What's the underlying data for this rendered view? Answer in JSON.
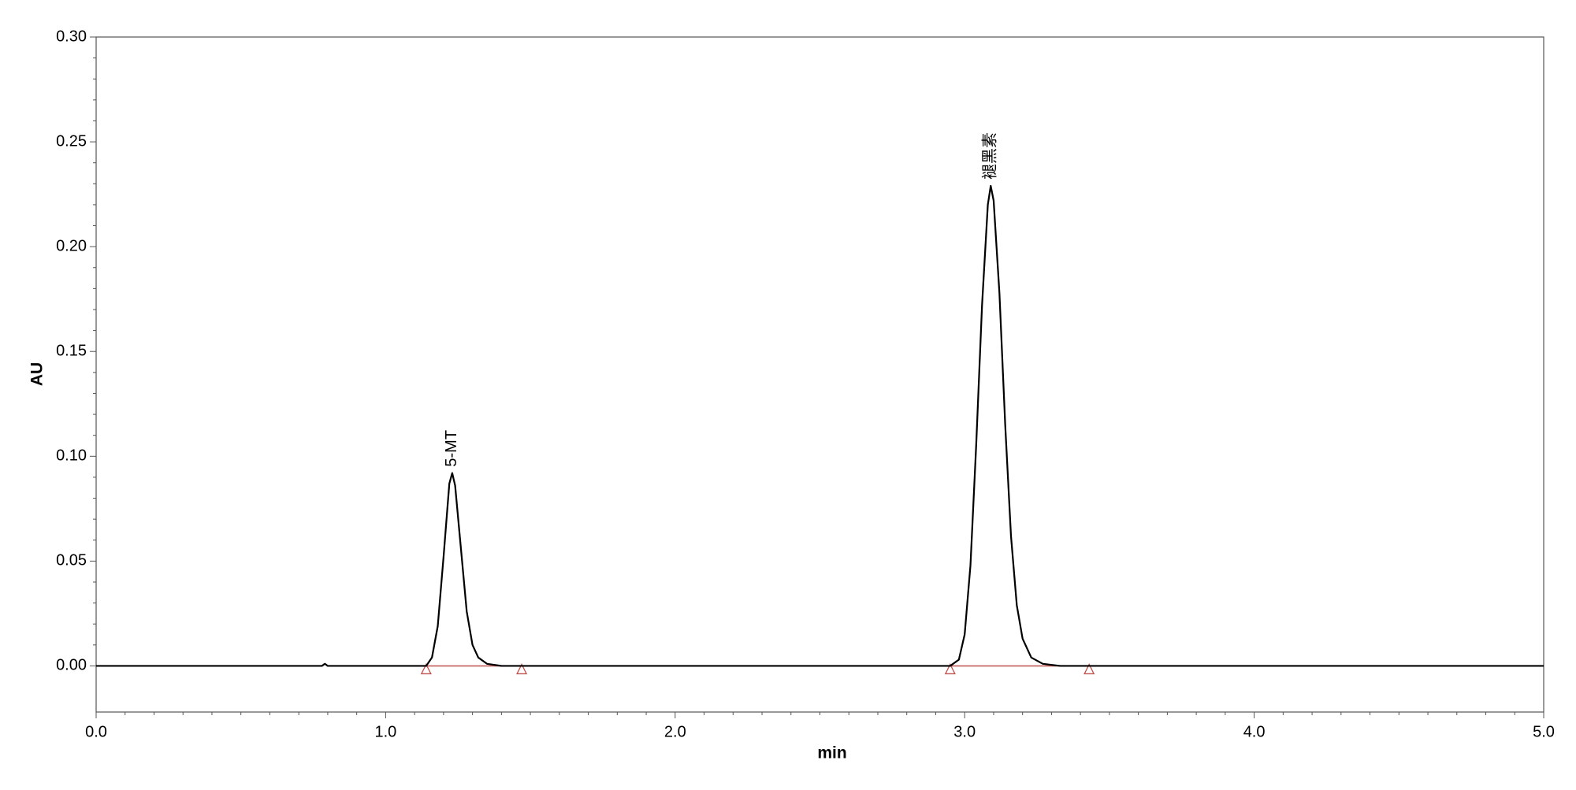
{
  "chart_data": {
    "type": "line",
    "xlabel": "min",
    "ylabel": "AU",
    "x": [
      0,
      0.78,
      0.79,
      0.8,
      1.14,
      1.16,
      1.18,
      1.2,
      1.22,
      1.23,
      1.24,
      1.26,
      1.28,
      1.3,
      1.32,
      1.35,
      1.4,
      2.95,
      2.98,
      3.0,
      3.02,
      3.04,
      3.06,
      3.08,
      3.09,
      3.1,
      3.12,
      3.14,
      3.16,
      3.18,
      3.2,
      3.23,
      3.27,
      3.33,
      5.0
    ],
    "series": [
      {
        "color": "#000000",
        "values": [
          0,
          0,
          0.001,
          0,
          0,
          0.004,
          0.019,
          0.052,
          0.087,
          0.092,
          0.086,
          0.056,
          0.026,
          0.01,
          0.004,
          0.001,
          0,
          0,
          0.003,
          0.015,
          0.048,
          0.106,
          0.172,
          0.22,
          0.229,
          0.222,
          0.178,
          0.115,
          0.062,
          0.029,
          0.013,
          0.004,
          0.001,
          0,
          0
        ]
      }
    ],
    "integration_marks": [
      [
        1.14,
        1.47
      ],
      [
        2.95,
        3.43
      ]
    ],
    "integration_color": "#c0504d",
    "annotations": [
      {
        "text": "5-MT",
        "x": 1.23,
        "y": 0.092
      },
      {
        "text": "褪黑素",
        "x": 3.09,
        "y": 0.229
      }
    ],
    "xlim": [
      0,
      5.0
    ],
    "xticks": [
      {
        "value": 0,
        "label": "0.0"
      },
      {
        "value": 1,
        "label": "1.0"
      },
      {
        "value": 2,
        "label": "2.0"
      },
      {
        "value": 3,
        "label": "3.0"
      },
      {
        "value": 4,
        "label": "4.0"
      },
      {
        "value": 5,
        "label": "5.0"
      }
    ],
    "ylim": [
      -0.022,
      0.3
    ],
    "yticks": [
      {
        "value": 0,
        "label": "0.00"
      },
      {
        "value": 0.05,
        "label": "0.05"
      },
      {
        "value": 0.1,
        "label": "0.10"
      },
      {
        "value": 0.15,
        "label": "0.15"
      },
      {
        "value": 0.2,
        "label": "0.20"
      },
      {
        "value": 0.25,
        "label": "0.25"
      },
      {
        "value": 0.3,
        "label": "0.30"
      }
    ]
  }
}
